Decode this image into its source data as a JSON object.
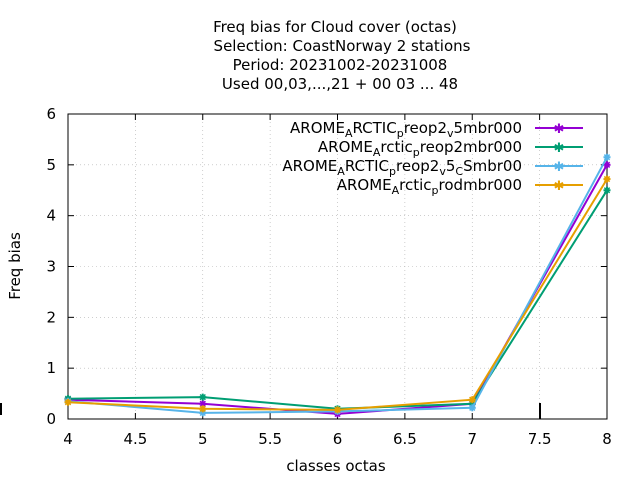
{
  "chart_data": {
    "type": "line",
    "title_lines": [
      "Freq bias  for Cloud cover (octas)",
      "Selection: CoastNorway      2 stations",
      "Period: 20231002-20231008",
      "Used  00,03,...,21  + 00 03 ... 48"
    ],
    "xlabel": "classes octas",
    "ylabel": "Freq bias",
    "xlim": [
      4,
      8
    ],
    "ylim": [
      0,
      6
    ],
    "xticks": [
      "4",
      "4.5",
      "5",
      "5.5",
      "6",
      "6.5",
      "7",
      "7.5",
      "8"
    ],
    "yticks": [
      "0",
      "1",
      "2",
      "3",
      "4",
      "5",
      "6"
    ],
    "grid": true,
    "legend_position": "top-right",
    "series": [
      {
        "name": "AROME_ARCTIC_preop2_v5mbr000",
        "legend": {
          "a": "AROME",
          "b": "A",
          "c": "RCTIC",
          "d": "p",
          "e": "reop2",
          "f": "v",
          "g": "5mbr000"
        },
        "color": "#9400d3",
        "x": [
          4,
          5,
          6,
          7,
          8
        ],
        "y": [
          0.38,
          0.3,
          0.1,
          0.3,
          5.0
        ]
      },
      {
        "name": "AROME_Arctic_preop2mbr000",
        "legend": {
          "a": "AROME",
          "b": "A",
          "c": "rctic",
          "d": "p",
          "e": "reop2mbr000"
        },
        "color": "#009e73",
        "x": [
          4,
          5,
          6,
          7,
          8
        ],
        "y": [
          0.4,
          0.43,
          0.2,
          0.3,
          4.5
        ]
      },
      {
        "name": "AROME_ARCTIC_preop2_v5_CSmbr00",
        "legend": {
          "a": "AROME",
          "b": "A",
          "c": "RCTIC",
          "d": "p",
          "e": "reop2",
          "f": "v",
          "g": "5",
          "h": "C",
          "i": "Smbr00"
        },
        "color": "#56b4e9",
        "x": [
          4,
          5,
          6,
          7,
          8
        ],
        "y": [
          0.35,
          0.12,
          0.15,
          0.22,
          5.15
        ]
      },
      {
        "name": "AROME_Arctic_prodmbr000",
        "legend": {
          "a": "AROME",
          "b": "A",
          "c": "rctic",
          "d": "p",
          "e": "rodmbr000"
        },
        "color": "#e69f00",
        "x": [
          4,
          5,
          6,
          7,
          8
        ],
        "y": [
          0.33,
          0.2,
          0.18,
          0.38,
          4.72
        ]
      }
    ]
  }
}
